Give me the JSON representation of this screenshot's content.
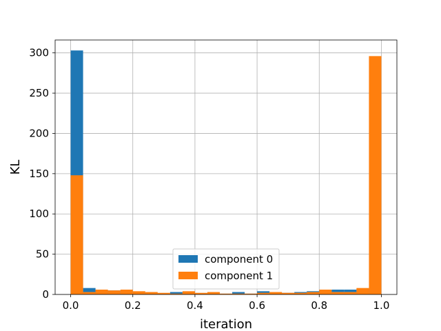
{
  "chart_data": {
    "type": "bar",
    "title": "",
    "xlabel": "iteration",
    "ylabel": "KL",
    "xlim": [
      -0.05,
      1.05
    ],
    "ylim": [
      0,
      316
    ],
    "x_ticks": [
      0.0,
      0.2,
      0.4,
      0.6,
      0.8,
      1.0
    ],
    "x_tick_labels": [
      "0.0",
      "0.2",
      "0.4",
      "0.6",
      "0.8",
      "1.0"
    ],
    "y_ticks": [
      0,
      50,
      100,
      150,
      200,
      250,
      300
    ],
    "y_tick_labels": [
      "0",
      "50",
      "100",
      "150",
      "200",
      "250",
      "300"
    ],
    "grid": true,
    "legend_position": "lower-center",
    "bin_edges": [
      0.0,
      0.04,
      0.08,
      0.12,
      0.16,
      0.2,
      0.24,
      0.28,
      0.32,
      0.36,
      0.4,
      0.44,
      0.48,
      0.52,
      0.56,
      0.6,
      0.64,
      0.68,
      0.72,
      0.76,
      0.8,
      0.84,
      0.88,
      0.92,
      0.96,
      1.0
    ],
    "series": [
      {
        "name": "component 0",
        "color": "#1f77b4",
        "values": [
          303,
          8,
          5,
          5,
          4,
          3,
          2,
          1,
          3,
          2,
          1,
          2,
          1,
          3,
          1,
          4,
          2,
          2,
          3,
          4,
          5,
          6,
          6,
          7,
          3
        ]
      },
      {
        "name": "component 1",
        "color": "#ff7f0e",
        "values": [
          148,
          3,
          6,
          5,
          6,
          4,
          3,
          2,
          1,
          4,
          2,
          3,
          1,
          1,
          1,
          2,
          3,
          2,
          2,
          3,
          6,
          3,
          3,
          8,
          296
        ]
      }
    ]
  }
}
